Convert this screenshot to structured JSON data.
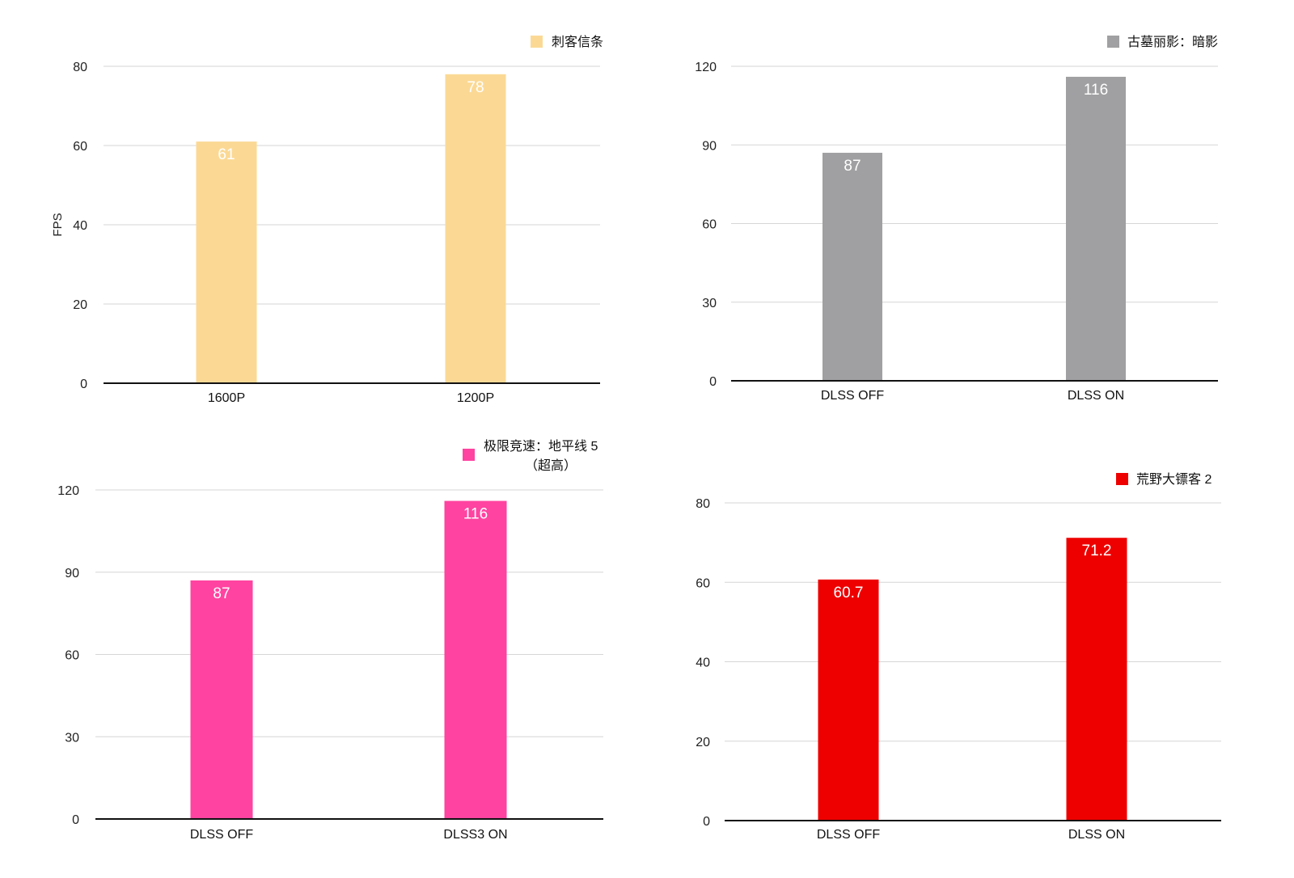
{
  "chart_data": [
    {
      "type": "bar",
      "categories": [
        "1600P",
        "1200P"
      ],
      "series": [
        {
          "name": "刺客信条",
          "values": [
            61,
            78
          ],
          "color": "#FBD995"
        }
      ],
      "ylabel": "FPS",
      "ylim": [
        0,
        80
      ],
      "yticks": [
        0,
        20,
        40,
        60,
        80
      ],
      "grid": true,
      "legend": "top-right",
      "data_labels": [
        "61",
        "78"
      ]
    },
    {
      "type": "bar",
      "categories": [
        "DLSS OFF",
        "DLSS ON"
      ],
      "series": [
        {
          "name": "古墓丽影：暗影",
          "values": [
            87,
            116
          ],
          "color": "#A0A0A2"
        }
      ],
      "ylim": [
        0,
        120
      ],
      "yticks": [
        0,
        30,
        60,
        90,
        120
      ],
      "grid": true,
      "legend": "top-right",
      "data_labels": [
        "87",
        "116"
      ]
    },
    {
      "type": "bar",
      "categories": [
        "DLSS OFF",
        "DLSS3 ON"
      ],
      "series": [
        {
          "name": "极限竞速：地平线 5",
          "name_line2": "（超高）",
          "values": [
            87,
            116
          ],
          "color": "#FF43A0"
        }
      ],
      "ylim": [
        0,
        120
      ],
      "yticks": [
        0,
        30,
        60,
        90,
        120
      ],
      "grid": true,
      "legend": "top-right",
      "data_labels": [
        "87",
        "116"
      ]
    },
    {
      "type": "bar",
      "categories": [
        "DLSS OFF",
        "DLSS ON"
      ],
      "series": [
        {
          "name": "荒野大镖客 2",
          "values": [
            60.7,
            71.2
          ],
          "color": "#EE0000"
        }
      ],
      "ylim": [
        0,
        80
      ],
      "yticks": [
        0,
        20,
        40,
        60,
        80
      ],
      "grid": true,
      "legend": "top-right",
      "data_labels": [
        "60.7",
        "71.2"
      ]
    }
  ]
}
